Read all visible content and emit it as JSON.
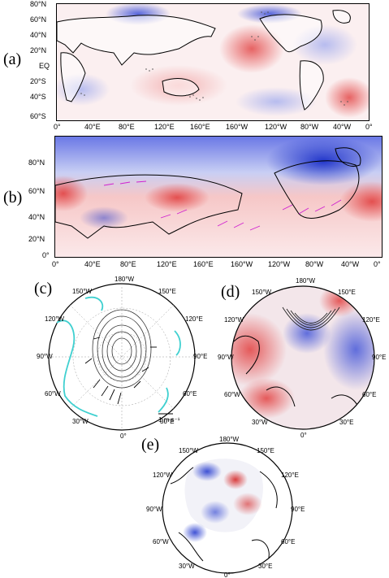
{
  "panels": {
    "a": {
      "label": "(a)",
      "lat_ticks": [
        "80°N",
        "60°N",
        "40°N",
        "20°N",
        "EQ",
        "20°S",
        "40°S",
        "60°S"
      ],
      "lon_ticks": [
        "0°",
        "40°E",
        "80°E",
        "120°E",
        "160°E",
        "160°W",
        "120°W",
        "80°W",
        "40°W",
        "0°"
      ]
    },
    "b": {
      "label": "(b)",
      "lat_ticks": [
        "80°N",
        "60°N",
        "40°N",
        "20°N",
        "0°"
      ],
      "lon_ticks": [
        "0°",
        "40°E",
        "80°E",
        "120°E",
        "160°E",
        "160°W",
        "120°W",
        "80°W",
        "40°W",
        "0°"
      ]
    },
    "c": {
      "label": "(c)",
      "ring_labels": [
        "180°W",
        "150°E",
        "120°E",
        "90°E",
        "60°E",
        "30°E",
        "0°",
        "30°W",
        "60°W",
        "90°W",
        "120°W",
        "150°W"
      ],
      "scale_label": "1 m s⁻¹"
    },
    "d": {
      "label": "(d)",
      "ring_labels": [
        "180°W",
        "150°E",
        "120°E",
        "90°E",
        "60°E",
        "30°E",
        "0°",
        "30°W",
        "60°W",
        "90°W",
        "120°W",
        "150°W"
      ]
    },
    "e": {
      "label": "(e)",
      "ring_labels": [
        "180°W",
        "150°E",
        "120°E",
        "90°E",
        "60°E",
        "30°E",
        "0°",
        "30°W",
        "60°W",
        "90°W",
        "120°W",
        "150°W"
      ]
    }
  },
  "colors": {
    "warm": "#e34a4a",
    "cool": "#3b4fd8",
    "contour_cyan": "#3fd0d0",
    "vector_magenta": "#d020d0"
  }
}
